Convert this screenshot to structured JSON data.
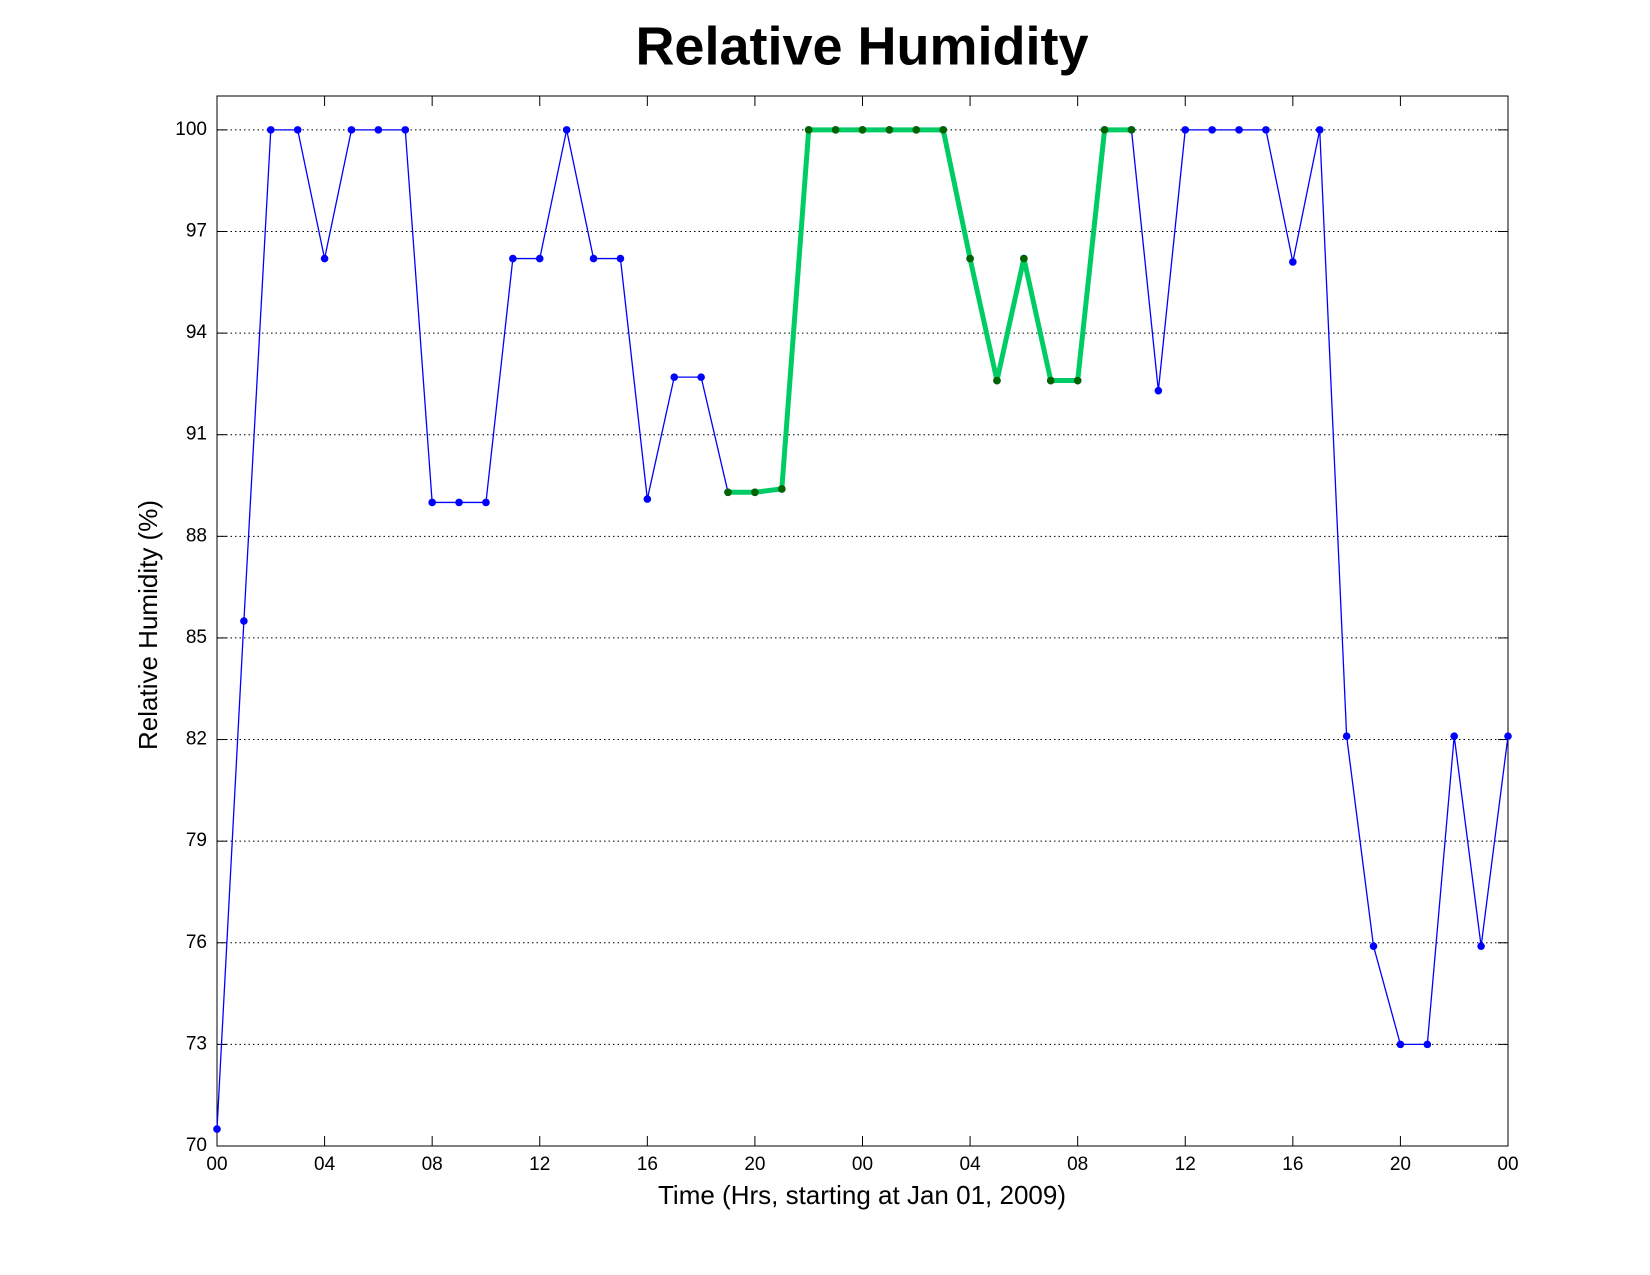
{
  "chart_data": {
    "type": "line",
    "title": "Relative Humidity",
    "x_label": "Time (Hrs, starting at Jan 01, 2009)",
    "y_label": "Relative Humidity (%)",
    "x": [
      0,
      1,
      2,
      3,
      4,
      5,
      6,
      7,
      8,
      9,
      10,
      11,
      12,
      13,
      14,
      15,
      16,
      17,
      18,
      19,
      20,
      21,
      22,
      23,
      24,
      25,
      26,
      27,
      28,
      29,
      30,
      31,
      32,
      33,
      34,
      35,
      36,
      37,
      38,
      39,
      40,
      41,
      42,
      43,
      44,
      45,
      46,
      47,
      48
    ],
    "series": [
      {
        "color": "#0000ff",
        "marker_color": "#0000ff",
        "values": [
          70.5,
          85.5,
          100,
          100,
          96.2,
          100,
          100,
          100,
          89.0,
          89.0,
          89.0,
          96.2,
          96.2,
          100,
          96.2,
          96.2,
          89.1,
          92.7,
          92.7,
          89.3,
          89.3,
          89.4,
          100,
          100,
          100,
          100,
          100,
          100,
          96.2,
          92.6,
          96.2,
          92.6,
          92.6,
          100,
          100,
          92.3,
          100,
          100,
          100,
          100,
          96.1,
          100,
          82.1,
          75.9,
          73.0,
          73.0,
          82.1,
          75.9,
          82.1
        ]
      },
      {
        "color": "#00cc66",
        "marker_color": "#006400",
        "values": [
          null,
          null,
          null,
          null,
          null,
          null,
          null,
          null,
          null,
          null,
          null,
          null,
          null,
          null,
          null,
          null,
          null,
          null,
          null,
          89.3,
          89.3,
          89.4,
          100,
          100,
          100,
          100,
          100,
          100,
          96.2,
          92.6,
          96.2,
          92.6,
          92.6,
          100,
          100,
          null,
          null,
          null,
          null,
          null,
          null,
          null,
          null,
          null,
          null,
          null,
          null,
          null,
          null
        ]
      }
    ],
    "xlim": [
      0,
      48
    ],
    "ylim": [
      70,
      101
    ],
    "xticks": [
      {
        "value": 0,
        "label": "00"
      },
      {
        "value": 4,
        "label": "04"
      },
      {
        "value": 8,
        "label": "08"
      },
      {
        "value": 12,
        "label": "12"
      },
      {
        "value": 16,
        "label": "16"
      },
      {
        "value": 20,
        "label": "20"
      },
      {
        "value": 24,
        "label": "00"
      },
      {
        "value": 28,
        "label": "04"
      },
      {
        "value": 32,
        "label": "08"
      },
      {
        "value": 36,
        "label": "12"
      },
      {
        "value": 40,
        "label": "16"
      },
      {
        "value": 44,
        "label": "20"
      },
      {
        "value": 48,
        "label": "00"
      }
    ],
    "yticks": [
      70,
      73,
      76,
      79,
      82,
      85,
      88,
      91,
      94,
      97,
      100
    ],
    "grid": true
  }
}
